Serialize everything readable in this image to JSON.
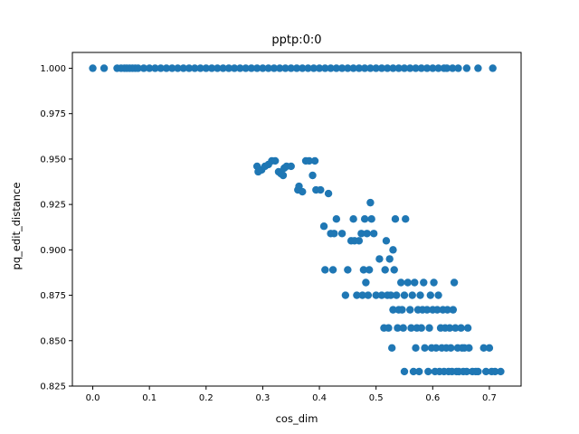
{
  "chart_data": {
    "type": "scatter",
    "title": "pptp:0:0",
    "xlabel": "cos_dim",
    "ylabel": "pq_edit_distance",
    "xlim": [
      -0.036,
      0.756
    ],
    "ylim": [
      0.825,
      1.0087
    ],
    "x_ticks": [
      0.0,
      0.1,
      0.2,
      0.3,
      0.4,
      0.5,
      0.6,
      0.7
    ],
    "x_tick_labels": [
      "0.0",
      "0.1",
      "0.2",
      "0.3",
      "0.4",
      "0.5",
      "0.6",
      "0.7"
    ],
    "y_ticks": [
      0.825,
      0.85,
      0.875,
      0.9,
      0.925,
      0.95,
      0.975,
      1.0
    ],
    "y_tick_labels": [
      "0.825",
      "0.850",
      "0.875",
      "0.900",
      "0.925",
      "0.950",
      "0.975",
      "1.000"
    ],
    "grid": false,
    "marker_color": "#1f77b4",
    "series": [
      {
        "points": [
          [
            0.0,
            1.0
          ],
          [
            0.02,
            1.0
          ],
          [
            0.043,
            1.0
          ],
          [
            0.05,
            1.0
          ],
          [
            0.056,
            1.0
          ],
          [
            0.06,
            1.0
          ],
          [
            0.065,
            1.0
          ],
          [
            0.07,
            1.0
          ],
          [
            0.075,
            1.0
          ],
          [
            0.08,
            1.0
          ],
          [
            0.09,
            1.0
          ],
          [
            0.1,
            1.0
          ],
          [
            0.11,
            1.0
          ],
          [
            0.12,
            1.0
          ],
          [
            0.13,
            1.0
          ],
          [
            0.14,
            1.0
          ],
          [
            0.15,
            1.0
          ],
          [
            0.16,
            1.0
          ],
          [
            0.17,
            1.0
          ],
          [
            0.18,
            1.0
          ],
          [
            0.19,
            1.0
          ],
          [
            0.2,
            1.0
          ],
          [
            0.21,
            1.0
          ],
          [
            0.22,
            1.0
          ],
          [
            0.23,
            1.0
          ],
          [
            0.24,
            1.0
          ],
          [
            0.25,
            1.0
          ],
          [
            0.26,
            1.0
          ],
          [
            0.27,
            1.0
          ],
          [
            0.28,
            1.0
          ],
          [
            0.29,
            1.0
          ],
          [
            0.3,
            1.0
          ],
          [
            0.31,
            1.0
          ],
          [
            0.32,
            1.0
          ],
          [
            0.33,
            1.0
          ],
          [
            0.34,
            1.0
          ],
          [
            0.35,
            1.0
          ],
          [
            0.36,
            1.0
          ],
          [
            0.37,
            1.0
          ],
          [
            0.38,
            1.0
          ],
          [
            0.39,
            1.0
          ],
          [
            0.4,
            1.0
          ],
          [
            0.41,
            1.0
          ],
          [
            0.42,
            1.0
          ],
          [
            0.43,
            1.0
          ],
          [
            0.44,
            1.0
          ],
          [
            0.45,
            1.0
          ],
          [
            0.46,
            1.0
          ],
          [
            0.47,
            1.0
          ],
          [
            0.48,
            1.0
          ],
          [
            0.49,
            1.0
          ],
          [
            0.5,
            1.0
          ],
          [
            0.51,
            1.0
          ],
          [
            0.52,
            1.0
          ],
          [
            0.53,
            1.0
          ],
          [
            0.54,
            1.0
          ],
          [
            0.55,
            1.0
          ],
          [
            0.56,
            1.0
          ],
          [
            0.57,
            1.0
          ],
          [
            0.58,
            1.0
          ],
          [
            0.59,
            1.0
          ],
          [
            0.6,
            1.0
          ],
          [
            0.61,
            1.0
          ],
          [
            0.62,
            1.0
          ],
          [
            0.625,
            1.0
          ],
          [
            0.635,
            1.0
          ],
          [
            0.645,
            1.0
          ],
          [
            0.66,
            1.0
          ],
          [
            0.68,
            1.0
          ],
          [
            0.706,
            1.0
          ],
          [
            0.29,
            0.946
          ],
          [
            0.292,
            0.943
          ],
          [
            0.298,
            0.944
          ],
          [
            0.304,
            0.946
          ],
          [
            0.31,
            0.947
          ],
          [
            0.316,
            0.949
          ],
          [
            0.322,
            0.949
          ],
          [
            0.328,
            0.943
          ],
          [
            0.332,
            0.942
          ],
          [
            0.336,
            0.941
          ],
          [
            0.338,
            0.945
          ],
          [
            0.342,
            0.946
          ],
          [
            0.35,
            0.946
          ],
          [
            0.362,
            0.933
          ],
          [
            0.364,
            0.935
          ],
          [
            0.37,
            0.932
          ],
          [
            0.376,
            0.949
          ],
          [
            0.382,
            0.949
          ],
          [
            0.388,
            0.941
          ],
          [
            0.392,
            0.949
          ],
          [
            0.394,
            0.933
          ],
          [
            0.402,
            0.933
          ],
          [
            0.408,
            0.913
          ],
          [
            0.41,
            0.889
          ],
          [
            0.416,
            0.931
          ],
          [
            0.42,
            0.909
          ],
          [
            0.424,
            0.889
          ],
          [
            0.426,
            0.909
          ],
          [
            0.43,
            0.917
          ],
          [
            0.44,
            0.909
          ],
          [
            0.446,
            0.875
          ],
          [
            0.45,
            0.889
          ],
          [
            0.456,
            0.905
          ],
          [
            0.46,
            0.917
          ],
          [
            0.462,
            0.905
          ],
          [
            0.466,
            0.875
          ],
          [
            0.47,
            0.905
          ],
          [
            0.474,
            0.909
          ],
          [
            0.476,
            0.875
          ],
          [
            0.478,
            0.889
          ],
          [
            0.48,
            0.917
          ],
          [
            0.482,
            0.882
          ],
          [
            0.484,
            0.909
          ],
          [
            0.486,
            0.875
          ],
          [
            0.488,
            0.889
          ],
          [
            0.49,
            0.926
          ],
          [
            0.492,
            0.917
          ],
          [
            0.496,
            0.909
          ],
          [
            0.5,
            0.875
          ],
          [
            0.506,
            0.895
          ],
          [
            0.51,
            0.875
          ],
          [
            0.514,
            0.857
          ],
          [
            0.516,
            0.889
          ],
          [
            0.518,
            0.905
          ],
          [
            0.52,
            0.875
          ],
          [
            0.522,
            0.857
          ],
          [
            0.524,
            0.895
          ],
          [
            0.526,
            0.875
          ],
          [
            0.528,
            0.846
          ],
          [
            0.53,
            0.867
          ],
          [
            0.53,
            0.9
          ],
          [
            0.532,
            0.889
          ],
          [
            0.534,
            0.917
          ],
          [
            0.536,
            0.875
          ],
          [
            0.538,
            0.857
          ],
          [
            0.54,
            0.867
          ],
          [
            0.544,
            0.882
          ],
          [
            0.546,
            0.867
          ],
          [
            0.548,
            0.857
          ],
          [
            0.55,
            0.875
          ],
          [
            0.55,
            0.833
          ],
          [
            0.552,
            0.917
          ],
          [
            0.556,
            0.882
          ],
          [
            0.56,
            0.867
          ],
          [
            0.562,
            0.857
          ],
          [
            0.564,
            0.875
          ],
          [
            0.566,
            0.833
          ],
          [
            0.568,
            0.882
          ],
          [
            0.57,
            0.846
          ],
          [
            0.572,
            0.857
          ],
          [
            0.574,
            0.867
          ],
          [
            0.576,
            0.833
          ],
          [
            0.578,
            0.875
          ],
          [
            0.58,
            0.857
          ],
          [
            0.582,
            0.867
          ],
          [
            0.584,
            0.882
          ],
          [
            0.586,
            0.846
          ],
          [
            0.59,
            0.867
          ],
          [
            0.592,
            0.833
          ],
          [
            0.594,
            0.857
          ],
          [
            0.596,
            0.875
          ],
          [
            0.598,
            0.846
          ],
          [
            0.6,
            0.867
          ],
          [
            0.602,
            0.882
          ],
          [
            0.604,
            0.833
          ],
          [
            0.606,
            0.846
          ],
          [
            0.608,
            0.867
          ],
          [
            0.61,
            0.875
          ],
          [
            0.612,
            0.833
          ],
          [
            0.614,
            0.857
          ],
          [
            0.616,
            0.846
          ],
          [
            0.618,
            0.867
          ],
          [
            0.62,
            0.833
          ],
          [
            0.622,
            0.857
          ],
          [
            0.624,
            0.846
          ],
          [
            0.626,
            0.867
          ],
          [
            0.628,
            0.833
          ],
          [
            0.63,
            0.857
          ],
          [
            0.632,
            0.846
          ],
          [
            0.634,
            0.833
          ],
          [
            0.636,
            0.867
          ],
          [
            0.638,
            0.882
          ],
          [
            0.64,
            0.857
          ],
          [
            0.642,
            0.833
          ],
          [
            0.644,
            0.846
          ],
          [
            0.646,
            0.833
          ],
          [
            0.65,
            0.857
          ],
          [
            0.652,
            0.846
          ],
          [
            0.654,
            0.833
          ],
          [
            0.656,
            0.846
          ],
          [
            0.66,
            0.833
          ],
          [
            0.662,
            0.857
          ],
          [
            0.664,
            0.846
          ],
          [
            0.67,
            0.833
          ],
          [
            0.676,
            0.833
          ],
          [
            0.68,
            0.833
          ],
          [
            0.69,
            0.846
          ],
          [
            0.694,
            0.833
          ],
          [
            0.7,
            0.846
          ],
          [
            0.704,
            0.833
          ],
          [
            0.71,
            0.833
          ],
          [
            0.72,
            0.833
          ]
        ]
      }
    ]
  }
}
